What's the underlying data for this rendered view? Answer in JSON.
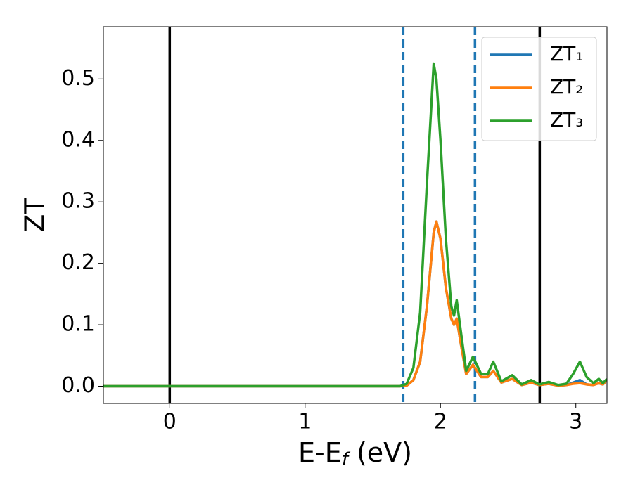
{
  "chart_data": {
    "type": "line",
    "xlabel": [
      "E-E",
      "f",
      " (eV)"
    ],
    "ylabel": "ZT",
    "x": [
      -0.49,
      0,
      0.5,
      1,
      1.5,
      1.7,
      1.75,
      1.8,
      1.85,
      1.9,
      1.95,
      1.97,
      2.0,
      2.04,
      2.08,
      2.1,
      2.12,
      2.15,
      2.19,
      2.24,
      2.3,
      2.35,
      2.39,
      2.45,
      2.53,
      2.6,
      2.67,
      2.73,
      2.8,
      2.87,
      2.93,
      2.98,
      3.03,
      3.08,
      3.13,
      3.17,
      3.2,
      3.23
    ],
    "series": [
      {
        "name": "ZT₁",
        "color": "#1f77b4",
        "values": [
          0,
          0,
          0,
          0,
          0,
          0,
          0.001,
          0.01,
          0.04,
          0.13,
          0.25,
          0.268,
          0.24,
          0.16,
          0.11,
          0.1,
          0.11,
          0.07,
          0.02,
          0.035,
          0.015,
          0.015,
          0.025,
          0.006,
          0.012,
          0.002,
          0.006,
          0.002,
          0.004,
          0.001,
          0.002,
          0.006,
          0.01,
          0.003,
          0.002,
          0.005,
          0.003,
          0.01
        ]
      },
      {
        "name": "ZT₂",
        "color": "#ff7f0e",
        "values": [
          0,
          0,
          0,
          0,
          0,
          0,
          0.001,
          0.01,
          0.04,
          0.13,
          0.25,
          0.268,
          0.24,
          0.16,
          0.11,
          0.1,
          0.11,
          0.07,
          0.02,
          0.035,
          0.015,
          0.015,
          0.025,
          0.006,
          0.012,
          0.002,
          0.006,
          0.002,
          0.004,
          0.001,
          0.002,
          0.004,
          0.005,
          0.003,
          0.002,
          0.005,
          0.003,
          0.01
        ]
      },
      {
        "name": "ZT₃",
        "color": "#2ca02c",
        "values": [
          0,
          0,
          0,
          0,
          0,
          0,
          0.004,
          0.03,
          0.12,
          0.33,
          0.525,
          0.5,
          0.4,
          0.24,
          0.13,
          0.115,
          0.14,
          0.09,
          0.025,
          0.048,
          0.02,
          0.02,
          0.04,
          0.008,
          0.018,
          0.003,
          0.01,
          0.003,
          0.007,
          0.002,
          0.004,
          0.02,
          0.04,
          0.015,
          0.005,
          0.012,
          0.005,
          0.012
        ]
      }
    ],
    "vlines": [
      {
        "x": 0,
        "color": "#000000",
        "style": "solid"
      },
      {
        "x": 1.725,
        "color": "#1f77b4",
        "style": "dashed"
      },
      {
        "x": 2.255,
        "color": "#1f77b4",
        "style": "dashed"
      },
      {
        "x": 2.733,
        "color": "#000000",
        "style": "solid"
      }
    ],
    "xlim": [
      -0.49,
      3.23
    ],
    "xticks": [
      0,
      1,
      2,
      3
    ],
    "ylim": [
      -0.028,
      0.585
    ],
    "yticks": [
      {
        "value": 0,
        "label": "0.0"
      },
      0.1,
      0.2,
      0.3,
      0.4,
      0.5
    ],
    "grid": false,
    "legend": "upper right"
  }
}
